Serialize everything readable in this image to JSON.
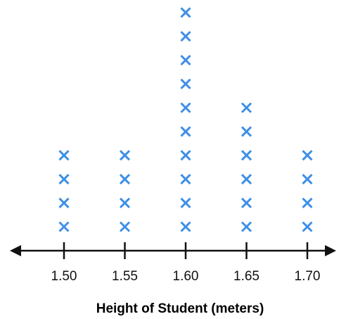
{
  "chart_data": {
    "type": "scatter",
    "subtype": "dot-plot",
    "title": "",
    "xlabel": "Height of Student (meters)",
    "ylabel": "",
    "marker": "x",
    "categories": [
      "1.50",
      "1.55",
      "1.60",
      "1.65",
      "1.70"
    ],
    "x": [
      1.5,
      1.55,
      1.6,
      1.65,
      1.7
    ],
    "counts": [
      4,
      4,
      10,
      6,
      4
    ],
    "xlim": [
      1.5,
      1.7
    ],
    "axis_arrows": "both-ends",
    "grid": false,
    "legend": "none"
  },
  "colors": {
    "marker": "#3d8fe6",
    "axis": "#111111"
  }
}
